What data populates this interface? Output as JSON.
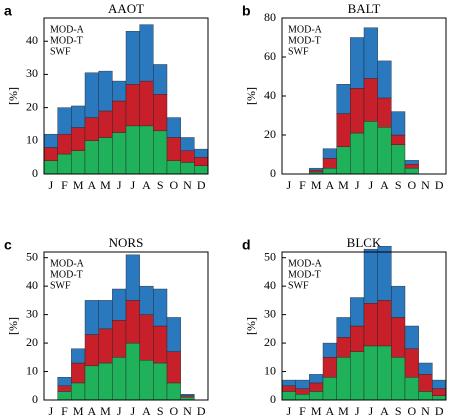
{
  "chart_data": [
    {
      "type": "bar",
      "stacked": true,
      "panel": "a",
      "title": "AAOT",
      "ylabel": "[%]",
      "legend": "upper left",
      "categories": [
        "J",
        "F",
        "M",
        "A",
        "M",
        "J",
        "J",
        "A",
        "S",
        "O",
        "N",
        "D"
      ],
      "series": [
        {
          "name": "MOD-A",
          "color": "#2a79bf",
          "values": [
            4,
            8,
            6.5,
            13.5,
            12,
            6,
            16,
            17,
            9,
            6,
            4,
            2.5
          ]
        },
        {
          "name": "MOD-T",
          "color": "#c8202a",
          "values": [
            4,
            6,
            7,
            7,
            8,
            9.5,
            12.5,
            13.5,
            11,
            7,
            3.5,
            2.5
          ]
        },
        {
          "name": "SWF",
          "color": "#20b25a",
          "values": [
            4,
            6,
            7,
            10,
            11,
            12.5,
            14.5,
            14.5,
            13,
            4,
            3.5,
            2.5
          ]
        }
      ],
      "ylim": [
        0,
        47
      ],
      "yticks": [
        0,
        10,
        20,
        30,
        40
      ]
    },
    {
      "type": "bar",
      "stacked": true,
      "panel": "b",
      "title": "BALT",
      "ylabel": "[%]",
      "legend": "upper left",
      "categories": [
        "J",
        "F",
        "M",
        "A",
        "M",
        "J",
        "J",
        "A",
        "S",
        "O",
        "N",
        "D"
      ],
      "series": [
        {
          "name": "MOD-A",
          "color": "#2a79bf",
          "values": [
            0,
            0,
            1,
            5,
            15,
            26,
            26,
            19,
            12,
            2,
            0,
            0
          ]
        },
        {
          "name": "MOD-T",
          "color": "#c8202a",
          "values": [
            0,
            0,
            1,
            5,
            17,
            23,
            22,
            15,
            5,
            2,
            0,
            0
          ]
        },
        {
          "name": "SWF",
          "color": "#20b25a",
          "values": [
            0,
            0,
            1,
            3,
            14,
            21,
            27,
            24,
            15,
            3,
            0,
            0
          ]
        }
      ],
      "ylim": [
        0,
        80
      ],
      "yticks": [
        0,
        20,
        40,
        60,
        80
      ]
    },
    {
      "type": "bar",
      "stacked": true,
      "panel": "c",
      "title": "NORS",
      "ylabel": "[%]",
      "legend": "upper left",
      "categories": [
        "J",
        "F",
        "M",
        "A",
        "M",
        "J",
        "J",
        "A",
        "S",
        "O",
        "N",
        "D"
      ],
      "series": [
        {
          "name": "MOD-A",
          "color": "#2a79bf",
          "values": [
            0,
            3,
            5,
            12,
            10,
            11,
            16,
            10,
            13,
            12,
            0.5,
            0
          ]
        },
        {
          "name": "MOD-T",
          "color": "#c8202a",
          "values": [
            0,
            2,
            7,
            11,
            12,
            13,
            15,
            16,
            13,
            11,
            0.5,
            0
          ]
        },
        {
          "name": "SWF",
          "color": "#20b25a",
          "values": [
            0,
            3,
            6,
            12,
            13,
            15,
            20,
            14,
            13,
            6,
            1,
            0
          ]
        }
      ],
      "ylim": [
        0,
        52
      ],
      "yticks": [
        0,
        10,
        20,
        30,
        40,
        50
      ]
    },
    {
      "type": "bar",
      "stacked": true,
      "panel": "d",
      "title": "BLCK",
      "ylabel": "[%]",
      "legend": "upper left",
      "categories": [
        "J",
        "F",
        "M",
        "A",
        "M",
        "J",
        "J",
        "A",
        "S",
        "O",
        "N",
        "D"
      ],
      "series": [
        {
          "name": "MOD-A",
          "color": "#2a79bf",
          "values": [
            2,
            3,
            3,
            5,
            7,
            10,
            19,
            19,
            11,
            8,
            4,
            3
          ]
        },
        {
          "name": "MOD-T",
          "color": "#c8202a",
          "values": [
            2,
            2,
            3,
            7,
            7,
            9,
            15,
            16,
            14,
            10,
            6,
            2.5
          ]
        },
        {
          "name": "SWF",
          "color": "#20b25a",
          "values": [
            3,
            2,
            3,
            8,
            15,
            17,
            19,
            19,
            15,
            8,
            3,
            1.5
          ]
        }
      ],
      "ylim": [
        0,
        52
      ],
      "yticks": [
        0,
        10,
        20,
        30,
        40,
        50
      ]
    }
  ]
}
